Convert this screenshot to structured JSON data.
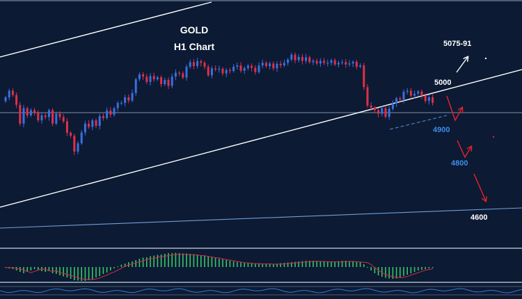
{
  "title": "GOLD",
  "subtitle": "H1 Chart",
  "colors": {
    "background": "#0c1a33",
    "bull": "#3b6fe0",
    "bear": "#e0304a",
    "trendline": "#ffffff",
    "support_line": "#6f9fd8",
    "level_blue": "#3d8cf0",
    "level_white": "#ffffff",
    "arrow_red": "#e0202c",
    "osc_green": "#39c46a",
    "osc_signal": "#d03040",
    "rsi_line": "#3a78d8"
  },
  "levels": [
    {
      "id": "l5075",
      "label": "5075-91",
      "color": "white"
    },
    {
      "id": "l5000",
      "label": "5000",
      "color": "white"
    },
    {
      "id": "l4900",
      "label": "4900",
      "color": "blue"
    },
    {
      "id": "l4800",
      "label": "4800",
      "color": "blue"
    },
    {
      "id": "l4600",
      "label": "4600",
      "color": "white"
    }
  ],
  "chart_data": {
    "type": "candlestick",
    "title": "GOLD",
    "subtitle": "H1 Chart",
    "ylim": [
      4530,
      5260
    ],
    "closes": [
      4985,
      5005,
      4992,
      4962,
      4905,
      4952,
      4930,
      4946,
      4938,
      4915,
      4930,
      4925,
      4946,
      4905,
      4935,
      4925,
      4912,
      4877,
      4868,
      4820,
      4845,
      4878,
      4905,
      4895,
      4915,
      4898,
      4928,
      4922,
      4945,
      4932,
      4952,
      4968,
      4968,
      4985,
      4975,
      4998,
      5040,
      5055,
      5048,
      5032,
      5050,
      5040,
      5046,
      5025,
      5038,
      5020,
      5048,
      5060,
      5058,
      5045,
      5078,
      5092,
      5080,
      5095,
      5090,
      5078,
      5052,
      5073,
      5070,
      5072,
      5058,
      5068,
      5065,
      5078,
      5082,
      5066,
      5074,
      5081,
      5075,
      5062,
      5082,
      5090,
      5080,
      5088,
      5073,
      5087,
      5082,
      5090,
      5100,
      5115,
      5098,
      5108,
      5096,
      5107,
      5092,
      5096,
      5088,
      5096,
      5090,
      5090,
      5098,
      5085,
      5090,
      5092,
      5085,
      5088,
      5093,
      5078,
      5082,
      5016,
      4960,
      4954,
      4946,
      4935,
      4952,
      4926,
      4950,
      4966,
      4982,
      4978,
      5002,
      5005,
      4990,
      4996,
      5003,
      4990,
      4974,
      4985,
      4968
    ]
  },
  "oscillator": {
    "histogram": [
      -0.1,
      -0.2,
      -0.3,
      -0.5,
      -0.7,
      -0.9,
      -0.7,
      -0.5,
      -0.3,
      -0.4,
      -0.6,
      -0.7,
      -0.6,
      -0.9,
      -1.0,
      -1.2,
      -1.35,
      -1.5,
      -1.7,
      -1.9,
      -1.95,
      -2.0,
      -2.0,
      -1.9,
      -1.75,
      -1.5,
      -1.3,
      -1.0,
      -0.8,
      -0.5,
      -0.2,
      0.1,
      0.35,
      0.5,
      0.7,
      0.8,
      1.0,
      1.2,
      1.35,
      1.4,
      1.55,
      1.65,
      1.75,
      1.8,
      1.9,
      2.0,
      2.0,
      2.05,
      2.0,
      1.95,
      1.95,
      1.9,
      1.85,
      1.8,
      1.7,
      1.6,
      1.5,
      1.45,
      1.3,
      1.2,
      1.1,
      1.0,
      0.9,
      0.8,
      0.7,
      0.65,
      0.6,
      0.55,
      0.55,
      0.5,
      0.5,
      0.5,
      0.45,
      0.45,
      0.45,
      0.5,
      0.55,
      0.6,
      0.65,
      0.7,
      0.75,
      0.8,
      0.85,
      0.9,
      0.9,
      0.9,
      0.9,
      0.85,
      0.85,
      0.8,
      0.8,
      0.8,
      0.85,
      0.9,
      0.9,
      0.85,
      0.8,
      0.75,
      0.7,
      0.4,
      -0.1,
      -0.5,
      -0.9,
      -1.2,
      -1.4,
      -1.55,
      -1.65,
      -1.7,
      -1.65,
      -1.5,
      -1.3,
      -1.1,
      -0.9,
      -0.7,
      -0.5,
      -0.4,
      -0.3,
      -0.2,
      -0.15
    ]
  }
}
